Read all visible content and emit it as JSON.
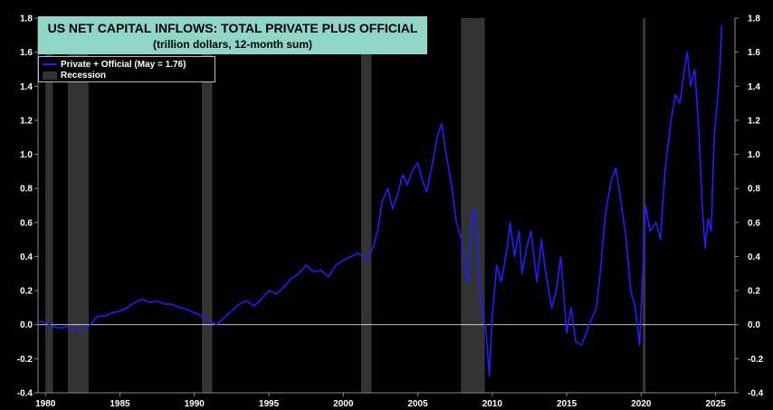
{
  "title": "US NET CAPITAL INFLOWS: TOTAL PRIVATE PLUS OFFICIAL",
  "subtitle": "(trillion dollars, 12-month sum)",
  "colors": {
    "background": "#000000",
    "series": "#1f1fff",
    "recession": "#333333",
    "title_box": "#8fd6c9",
    "zero_line": "#ffffff"
  },
  "legend": {
    "series_label": "Private + Official (May = 1.76)",
    "recession_label": "Recession"
  },
  "chart_data": {
    "type": "line",
    "title": "US NET CAPITAL INFLOWS: TOTAL PRIVATE PLUS OFFICIAL",
    "subtitle": "(trillion dollars, 12-month sum)",
    "xlabel": "",
    "ylabel": "",
    "xlim": [
      1979.5,
      2026.3
    ],
    "ylim": [
      -0.4,
      1.8
    ],
    "y_ticks": [
      -0.4,
      -0.2,
      0.0,
      0.2,
      0.4,
      0.6,
      0.8,
      1.0,
      1.2,
      1.4,
      1.6,
      1.8
    ],
    "y_tick_labels": [
      "-0.4",
      "-0.2",
      "0.0",
      "0.2",
      "0.4",
      "0.6",
      "0.8",
      "1.0",
      "1.2",
      "1.4",
      "1.6",
      "1.8"
    ],
    "x_ticks": [
      1980,
      1985,
      1990,
      1995,
      2000,
      2005,
      2010,
      2015,
      2020,
      2025
    ],
    "x_tick_labels": [
      "1980",
      "1985",
      "1990",
      "1995",
      "2000",
      "2005",
      "2010",
      "2015",
      "2020",
      "2025"
    ],
    "legend_position": "top-left",
    "grid": false,
    "recessions": [
      [
        1980.0,
        1980.5
      ],
      [
        1981.5,
        1982.9
      ],
      [
        1990.5,
        1991.2
      ],
      [
        2001.2,
        2001.9
      ],
      [
        2007.9,
        2009.5
      ],
      [
        2020.1,
        2020.3
      ]
    ],
    "series": [
      {
        "name": "Private + Official (May = 1.76)",
        "x": [
          1979.6,
          1980.0,
          1980.5,
          1981.0,
          1981.5,
          1982.0,
          1982.5,
          1983.0,
          1983.5,
          1984.0,
          1984.5,
          1985.0,
          1985.5,
          1986.0,
          1986.5,
          1987.0,
          1987.5,
          1988.0,
          1988.5,
          1989.0,
          1989.5,
          1990.0,
          1990.5,
          1991.0,
          1991.5,
          1992.0,
          1992.5,
          1993.0,
          1993.5,
          1994.0,
          1994.5,
          1995.0,
          1995.5,
          1996.0,
          1996.5,
          1997.0,
          1997.5,
          1998.0,
          1998.5,
          1999.0,
          1999.5,
          2000.0,
          2000.5,
          2001.0,
          2001.5,
          2002.0,
          2002.3,
          2002.6,
          2003.0,
          2003.3,
          2003.6,
          2004.0,
          2004.3,
          2004.6,
          2005.0,
          2005.3,
          2005.6,
          2006.0,
          2006.3,
          2006.6,
          2007.0,
          2007.3,
          2007.6,
          2008.0,
          2008.2,
          2008.4,
          2008.6,
          2008.8,
          2009.0,
          2009.2,
          2009.4,
          2009.6,
          2009.8,
          2010.0,
          2010.3,
          2010.6,
          2011.0,
          2011.2,
          2011.5,
          2011.8,
          2012.0,
          2012.3,
          2012.6,
          2013.0,
          2013.3,
          2013.6,
          2014.0,
          2014.3,
          2014.6,
          2015.0,
          2015.3,
          2015.6,
          2016.0,
          2016.3,
          2016.6,
          2017.0,
          2017.3,
          2017.6,
          2018.0,
          2018.3,
          2018.6,
          2019.0,
          2019.3,
          2019.6,
          2019.9,
          2020.1,
          2020.3,
          2020.6,
          2021.0,
          2021.3,
          2021.6,
          2022.0,
          2022.3,
          2022.6,
          2022.9,
          2023.1,
          2023.3,
          2023.6,
          2023.9,
          2024.1,
          2024.3,
          2024.5,
          2024.7,
          2024.9,
          2025.1,
          2025.3,
          2025.4
        ],
        "values": [
          0.02,
          0.01,
          -0.01,
          -0.02,
          -0.01,
          -0.03,
          -0.04,
          0.0,
          0.05,
          0.05,
          0.07,
          0.08,
          0.1,
          0.13,
          0.15,
          0.13,
          0.14,
          0.12,
          0.12,
          0.1,
          0.09,
          0.07,
          0.05,
          0.02,
          0.0,
          0.04,
          0.08,
          0.12,
          0.14,
          0.11,
          0.15,
          0.2,
          0.18,
          0.22,
          0.27,
          0.3,
          0.35,
          0.31,
          0.32,
          0.28,
          0.35,
          0.38,
          0.4,
          0.42,
          0.38,
          0.45,
          0.55,
          0.72,
          0.8,
          0.68,
          0.75,
          0.88,
          0.82,
          0.9,
          0.95,
          0.85,
          0.78,
          0.95,
          1.1,
          1.18,
          0.95,
          0.8,
          0.6,
          0.48,
          0.3,
          0.25,
          0.6,
          0.68,
          0.45,
          0.15,
          0.05,
          -0.05,
          -0.3,
          0.05,
          0.35,
          0.25,
          0.45,
          0.6,
          0.4,
          0.55,
          0.3,
          0.45,
          0.55,
          0.25,
          0.5,
          0.3,
          0.1,
          0.2,
          0.4,
          -0.05,
          0.1,
          -0.1,
          -0.12,
          -0.05,
          0.02,
          0.1,
          0.35,
          0.65,
          0.85,
          0.92,
          0.75,
          0.5,
          0.2,
          0.1,
          -0.12,
          0.3,
          0.7,
          0.55,
          0.6,
          0.5,
          0.9,
          1.2,
          1.35,
          1.3,
          1.5,
          1.6,
          1.4,
          1.5,
          1.1,
          0.7,
          0.45,
          0.62,
          0.55,
          1.1,
          1.3,
          1.52,
          1.76
        ]
      }
    ]
  }
}
